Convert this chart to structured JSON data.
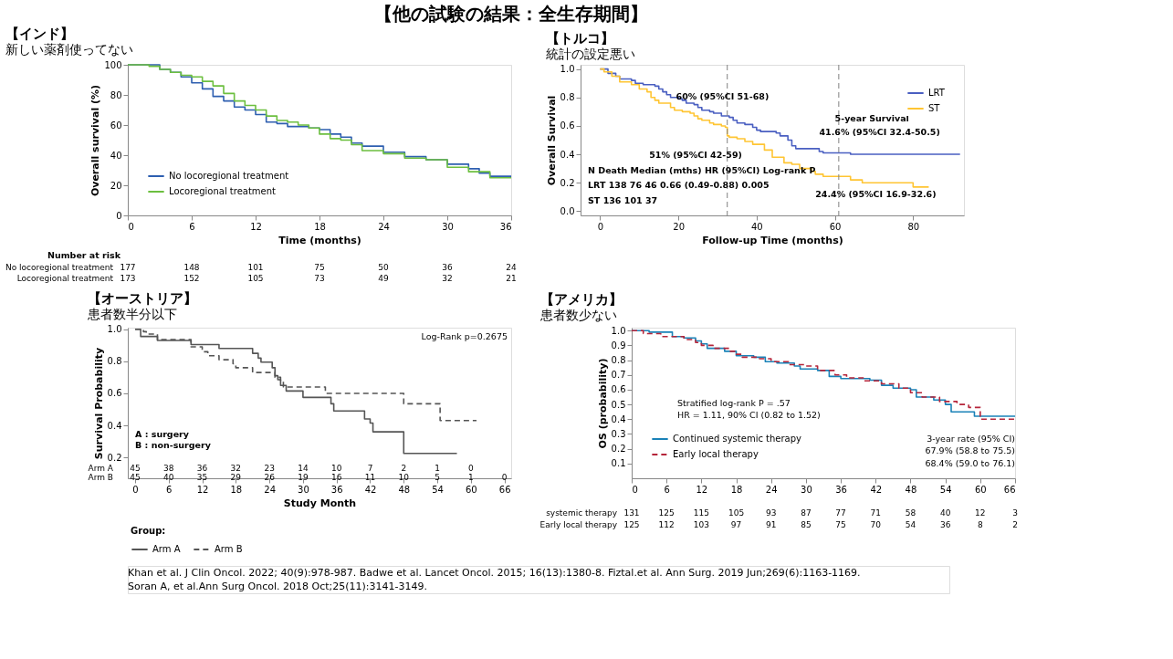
{
  "chart_data": [
    {
      "type": "other",
      "title": "【他の試験の結果：全生存期間】",
      "annotations": [
        "Khan et al. J Clin Oncol. 2022; 40(9):978-987. Badwe et al. Lancet Oncol. 2015; 16(13):1380-8. Fiztal.et al. Ann Surg. 2019 Jun;269(6):1163-1169.",
        "Soran A, et al.Ann Surg Oncol. 2018 Oct;25(11):3141-3149."
      ]
    },
    {
      "type": "step",
      "title": "【インド】",
      "subtitle": "新しい薬剤使ってない",
      "xlabel": "Time (months)",
      "ylabel": "Overall survival (%)",
      "xlim": [
        0,
        36
      ],
      "xticks": [
        0,
        6,
        12,
        18,
        24,
        30,
        36
      ],
      "ylim": [
        0,
        100
      ],
      "yticks": [
        0,
        20,
        40,
        60,
        80,
        100
      ],
      "grid": false,
      "legend": "bottom left",
      "line_style": "solid",
      "series": [
        {
          "name": "No locoregional treatment",
          "color": "#2e5fb0",
          "x": [
            0,
            1.8,
            3,
            4,
            5,
            6,
            7,
            8,
            9,
            10,
            11,
            12,
            13,
            14,
            15,
            17,
            18,
            19,
            20,
            21,
            22,
            24,
            26,
            28,
            30,
            32,
            33,
            34,
            36
          ],
          "values": [
            100,
            100,
            97,
            95,
            92,
            88,
            84,
            79,
            76,
            72,
            70,
            67,
            62,
            61,
            59,
            58,
            57,
            54,
            52,
            48,
            46,
            42,
            39,
            37,
            34,
            31,
            28,
            26,
            26
          ]
        },
        {
          "name": "Locoregional treatment",
          "color": "#6cbf3f",
          "x": [
            0,
            2,
            3,
            4,
            5,
            6,
            7,
            8,
            9,
            10,
            11,
            12,
            13,
            14,
            15,
            16,
            17,
            18,
            19,
            20,
            21,
            22,
            24,
            26,
            28,
            30,
            32,
            34,
            36
          ],
          "values": [
            100,
            99,
            97,
            95,
            93,
            92,
            89,
            86,
            81,
            76,
            73,
            70,
            66,
            63,
            62,
            60,
            58,
            54,
            51,
            50,
            47,
            43,
            41,
            38,
            37,
            32,
            29,
            25,
            25
          ]
        }
      ],
      "annotations": [
        "Number at risk",
        "No locoregional treatment 177 148 101 75 50 36 24",
        "Locoregional treatment 173 152 105 73 49 32 21"
      ]
    },
    {
      "type": "step",
      "title": "【トルコ】",
      "subtitle": "統計の設定悪い",
      "xlabel": "Follow-up Time (months)",
      "ylabel": "Overall Survival",
      "xlim": [
        -5,
        93
      ],
      "xticks": [
        0,
        20,
        40,
        60,
        80
      ],
      "ylim": [
        -0.03,
        1.03
      ],
      "yticks": [
        {
          "value": 0,
          "label": "0.0"
        },
        {
          "value": 0.2,
          "label": "0.2"
        },
        {
          "value": 0.4,
          "label": "0.4"
        },
        {
          "value": 0.6,
          "label": "0.6"
        },
        {
          "value": 0.8,
          "label": "0.8"
        },
        {
          "value": 1,
          "label": "1.0"
        }
      ],
      "grid": false,
      "legend": "top right",
      "line_style": "solid",
      "series": [
        {
          "name": "LRT",
          "color": "#4a5fc1",
          "x": [
            0,
            2,
            4,
            5,
            8,
            9,
            11,
            14,
            15,
            16,
            17,
            18,
            20,
            21,
            22,
            24,
            25,
            26,
            28,
            29,
            31,
            33,
            34,
            35,
            37,
            39,
            40,
            41,
            45,
            46,
            48,
            49,
            50,
            56,
            57,
            64,
            92
          ],
          "values": [
            1,
            0.97,
            0.95,
            0.93,
            0.92,
            0.9,
            0.89,
            0.88,
            0.86,
            0.84,
            0.82,
            0.8,
            0.79,
            0.78,
            0.76,
            0.75,
            0.73,
            0.71,
            0.7,
            0.69,
            0.67,
            0.66,
            0.64,
            0.62,
            0.61,
            0.59,
            0.57,
            0.56,
            0.55,
            0.53,
            0.5,
            0.46,
            0.44,
            0.42,
            0.41,
            0.4,
            0.4
          ]
        },
        {
          "name": "ST",
          "color": "#ffc533",
          "x": [
            0,
            1,
            3,
            5,
            8,
            10,
            12,
            13,
            14,
            15,
            18,
            19,
            21,
            23,
            24,
            25,
            26,
            28,
            29,
            31,
            32,
            32.5,
            33,
            35,
            37,
            39,
            42,
            44,
            47,
            49,
            51,
            54,
            55,
            57,
            64,
            67,
            80,
            84
          ],
          "values": [
            1,
            0.98,
            0.95,
            0.91,
            0.89,
            0.86,
            0.84,
            0.8,
            0.78,
            0.76,
            0.73,
            0.71,
            0.7,
            0.69,
            0.67,
            0.65,
            0.64,
            0.62,
            0.61,
            0.6,
            0.59,
            0.53,
            0.52,
            0.51,
            0.49,
            0.47,
            0.43,
            0.38,
            0.34,
            0.33,
            0.3,
            0.28,
            0.26,
            0.245,
            0.22,
            0.2,
            0.17,
            0.17
          ]
        }
      ],
      "ref_lines": [
        {
          "axis": "x",
          "value": 32.5,
          "color": "#808080",
          "line_style": "dashed"
        },
        {
          "axis": "x",
          "value": 61,
          "color": "#808080",
          "line_style": "dashed"
        }
      ],
      "annotations": [
        "60% (95%CI 51-68)",
        "51% (95%CI 42-59)",
        "5-year Survival",
        "41.6% (95%CI 32.4-50.5)",
        "24.4% (95%CI 16.9-32.6)",
        "N   Death   Median (mths)   HR (95%CI)   Log-rank P",
        "LRT   138   76   46   0.66 (0.49-0.88)   0.005",
        "ST   136   101   37"
      ]
    },
    {
      "type": "step",
      "title": "【オーストリア】",
      "subtitle": "患者数半分以下",
      "xlabel": "Study Month",
      "ylabel": "Survival Probability",
      "legend_title": "Group:",
      "xlim": [
        -1.3,
        67.2
      ],
      "xticks": [
        0,
        6,
        12,
        18,
        24,
        30,
        36,
        42,
        48,
        54,
        60,
        66
      ],
      "ylim": [
        0.07,
        1.01
      ],
      "yticks": [
        0.2,
        0.4,
        0.6,
        0.8,
        {
          "value": 1,
          "label": "1.0"
        }
      ],
      "grid": false,
      "legend": "bottom",
      "series": [
        {
          "name": "Arm A",
          "color": "#555555",
          "line_style": "solid",
          "x": [
            0,
            1,
            4,
            10,
            15,
            21,
            22,
            22.5,
            24.5,
            25,
            25.5,
            26,
            27,
            30,
            35,
            35.5,
            41,
            42,
            42.5,
            48,
            57.5
          ],
          "values": [
            1,
            0.955,
            0.93,
            0.905,
            0.88,
            0.85,
            0.82,
            0.795,
            0.76,
            0.71,
            0.685,
            0.65,
            0.615,
            0.575,
            0.535,
            0.49,
            0.44,
            0.415,
            0.36,
            0.225,
            0.225
          ]
        },
        {
          "name": "Arm B",
          "color": "#555555",
          "line_style": "dashed",
          "x": [
            0,
            1.5,
            2,
            4,
            10,
            12,
            13,
            15,
            17.5,
            18,
            21,
            25,
            26,
            26.5,
            34,
            48,
            54.5,
            61
          ],
          "values": [
            1,
            0.985,
            0.97,
            0.935,
            0.89,
            0.86,
            0.835,
            0.81,
            0.785,
            0.76,
            0.73,
            0.7,
            0.675,
            0.64,
            0.6,
            0.535,
            0.43,
            0.43
          ]
        }
      ],
      "annotations": [
        "Log-Rank p=0.2675",
        "A : surgery",
        "B : non-surgery",
        "Arm A 45 38 36 32 23 14 10 7 2 1 0",
        "Arm B 45 40 35 29 26 19 16 11 10 5 1 0"
      ]
    },
    {
      "type": "step",
      "title": "【アメリカ】",
      "subtitle": "患者数少ない",
      "ylabel": "OS (probability)",
      "xlim": [
        0,
        66
      ],
      "xticks": [
        0,
        6,
        12,
        18,
        24,
        30,
        36,
        42,
        48,
        54,
        60,
        66
      ],
      "ylim": [
        0,
        1.02
      ],
      "yticks": [
        0.1,
        0.2,
        0.3,
        0.4,
        0.5,
        0.6,
        0.7,
        0.8,
        0.9,
        {
          "value": 1,
          "label": "1.0"
        }
      ],
      "grid": false,
      "legend": "bottom left",
      "series": [
        {
          "name": "Continued systemic therapy",
          "color": "#1a82b8",
          "line_style": "solid",
          "x": [
            0,
            3,
            7,
            9,
            11,
            12,
            13,
            16,
            18,
            21,
            23,
            25,
            28,
            29,
            32,
            34,
            36,
            41,
            43,
            45,
            48,
            49,
            52,
            54,
            55,
            59,
            66
          ],
          "values": [
            1,
            0.99,
            0.96,
            0.95,
            0.93,
            0.91,
            0.88,
            0.86,
            0.83,
            0.82,
            0.79,
            0.78,
            0.76,
            0.74,
            0.73,
            0.69,
            0.675,
            0.665,
            0.63,
            0.61,
            0.6,
            0.55,
            0.53,
            0.5,
            0.45,
            0.42,
            0.42
          ]
        },
        {
          "name": "Early local therapy",
          "color": "#b5253a",
          "line_style": "dashed",
          "x": [
            0,
            2,
            5,
            9,
            11,
            12,
            14,
            17,
            18,
            19,
            22,
            24,
            27,
            30,
            32,
            35,
            37,
            40,
            43,
            46,
            48,
            50,
            53,
            56,
            58,
            60,
            66
          ],
          "values": [
            1,
            0.98,
            0.96,
            0.94,
            0.92,
            0.9,
            0.88,
            0.86,
            0.84,
            0.82,
            0.81,
            0.79,
            0.77,
            0.76,
            0.73,
            0.7,
            0.68,
            0.66,
            0.64,
            0.61,
            0.58,
            0.55,
            0.52,
            0.5,
            0.48,
            0.4,
            0.4
          ]
        }
      ],
      "annotations": [
        "Stratified log-rank P = .57",
        "HR = 1.11, 90% CI (0.82 to 1.52)",
        "3-year rate (95% CI)",
        "67.9% (58.8 to 75.5)",
        "68.4% (59.0 to 76.1)",
        "systemic therapy 131 125 115 105 93 87 77 71 58 40 12 3",
        "Early local therapy 125 112 103 97 91 85 75 70 54 36 8 2"
      ]
    }
  ]
}
